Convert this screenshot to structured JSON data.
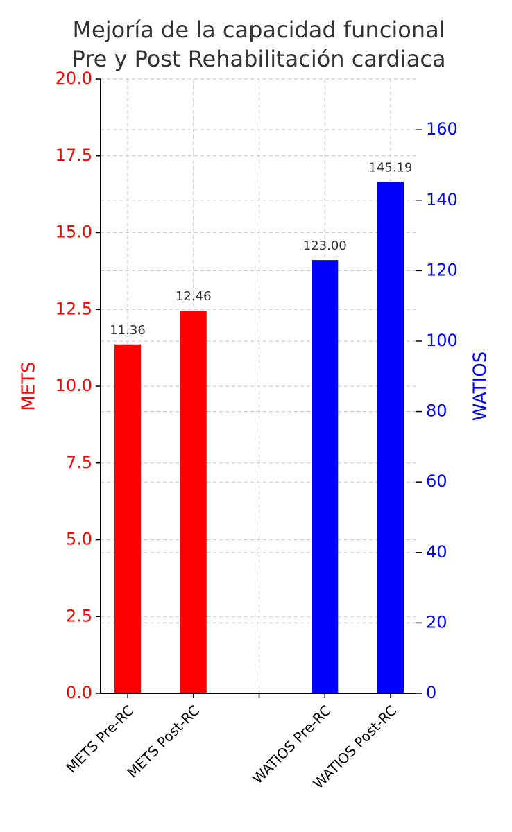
{
  "chart_data": {
    "type": "bar",
    "title": "Mejoría de la capacidad funcional",
    "subtitle": "Pre y Post Rehabilitación cardiaca",
    "categories": [
      "METS Pre-RC",
      "METS Post-RC",
      null,
      "WATIOS Pre-RC",
      "WATIOS Post-RC"
    ],
    "series": [
      {
        "name": "METS",
        "color": "#ff0000",
        "axis": "y",
        "values": [
          11.36,
          12.46,
          null,
          null,
          null
        ],
        "value_labels": [
          "11.36",
          "12.46",
          null,
          null,
          null
        ]
      },
      {
        "name": "WATIOS",
        "color": "#0000ff",
        "axis": "y2",
        "values": [
          null,
          null,
          null,
          123,
          145.19
        ],
        "value_labels": [
          null,
          null,
          null,
          "123.00",
          "145.19"
        ]
      }
    ],
    "ylabel": "METS",
    "y2label": "WATIOS",
    "ylim": [
      0,
      20
    ],
    "yticks": [
      {
        "value": 0,
        "label": "0.0"
      },
      2.5,
      {
        "value": 5,
        "label": "5.0"
      },
      7.5,
      {
        "value": 10,
        "label": "10.0"
      },
      12.5,
      {
        "value": 15,
        "label": "15.0"
      },
      17.5,
      {
        "value": 20,
        "label": "20.0"
      }
    ],
    "y2lim": [
      0,
      174.4
    ],
    "y2ticks": [
      0,
      20,
      40,
      60,
      80,
      100,
      120,
      140,
      160
    ],
    "grid": true
  }
}
